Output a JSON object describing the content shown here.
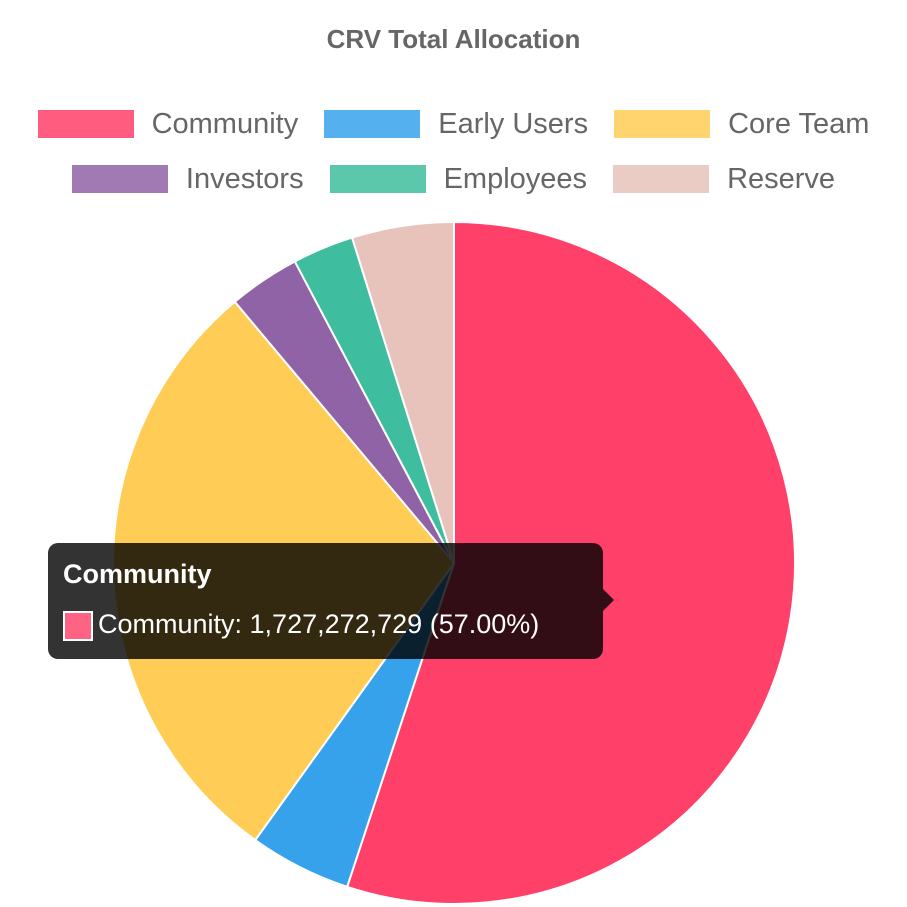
{
  "chart_data": {
    "type": "pie",
    "title": "CRV Total Allocation",
    "legend_position": "top",
    "categories": [
      "Community",
      "Early Users",
      "Core Team",
      "Investors",
      "Employees",
      "Reserve"
    ],
    "values": [
      57.0,
      5.0,
      30.0,
      3.5,
      3.0,
      5.0
    ],
    "value_unit": "percent",
    "colors": [
      "#ff4069",
      "#36a2eb",
      "#ffcd56",
      "#9062a6",
      "#3ebe9e",
      "#e8c3bb"
    ]
  },
  "tooltip": {
    "title": "Community",
    "body": "Community: 1,727,272,729 (57.00%)",
    "color": "#ff6384"
  }
}
